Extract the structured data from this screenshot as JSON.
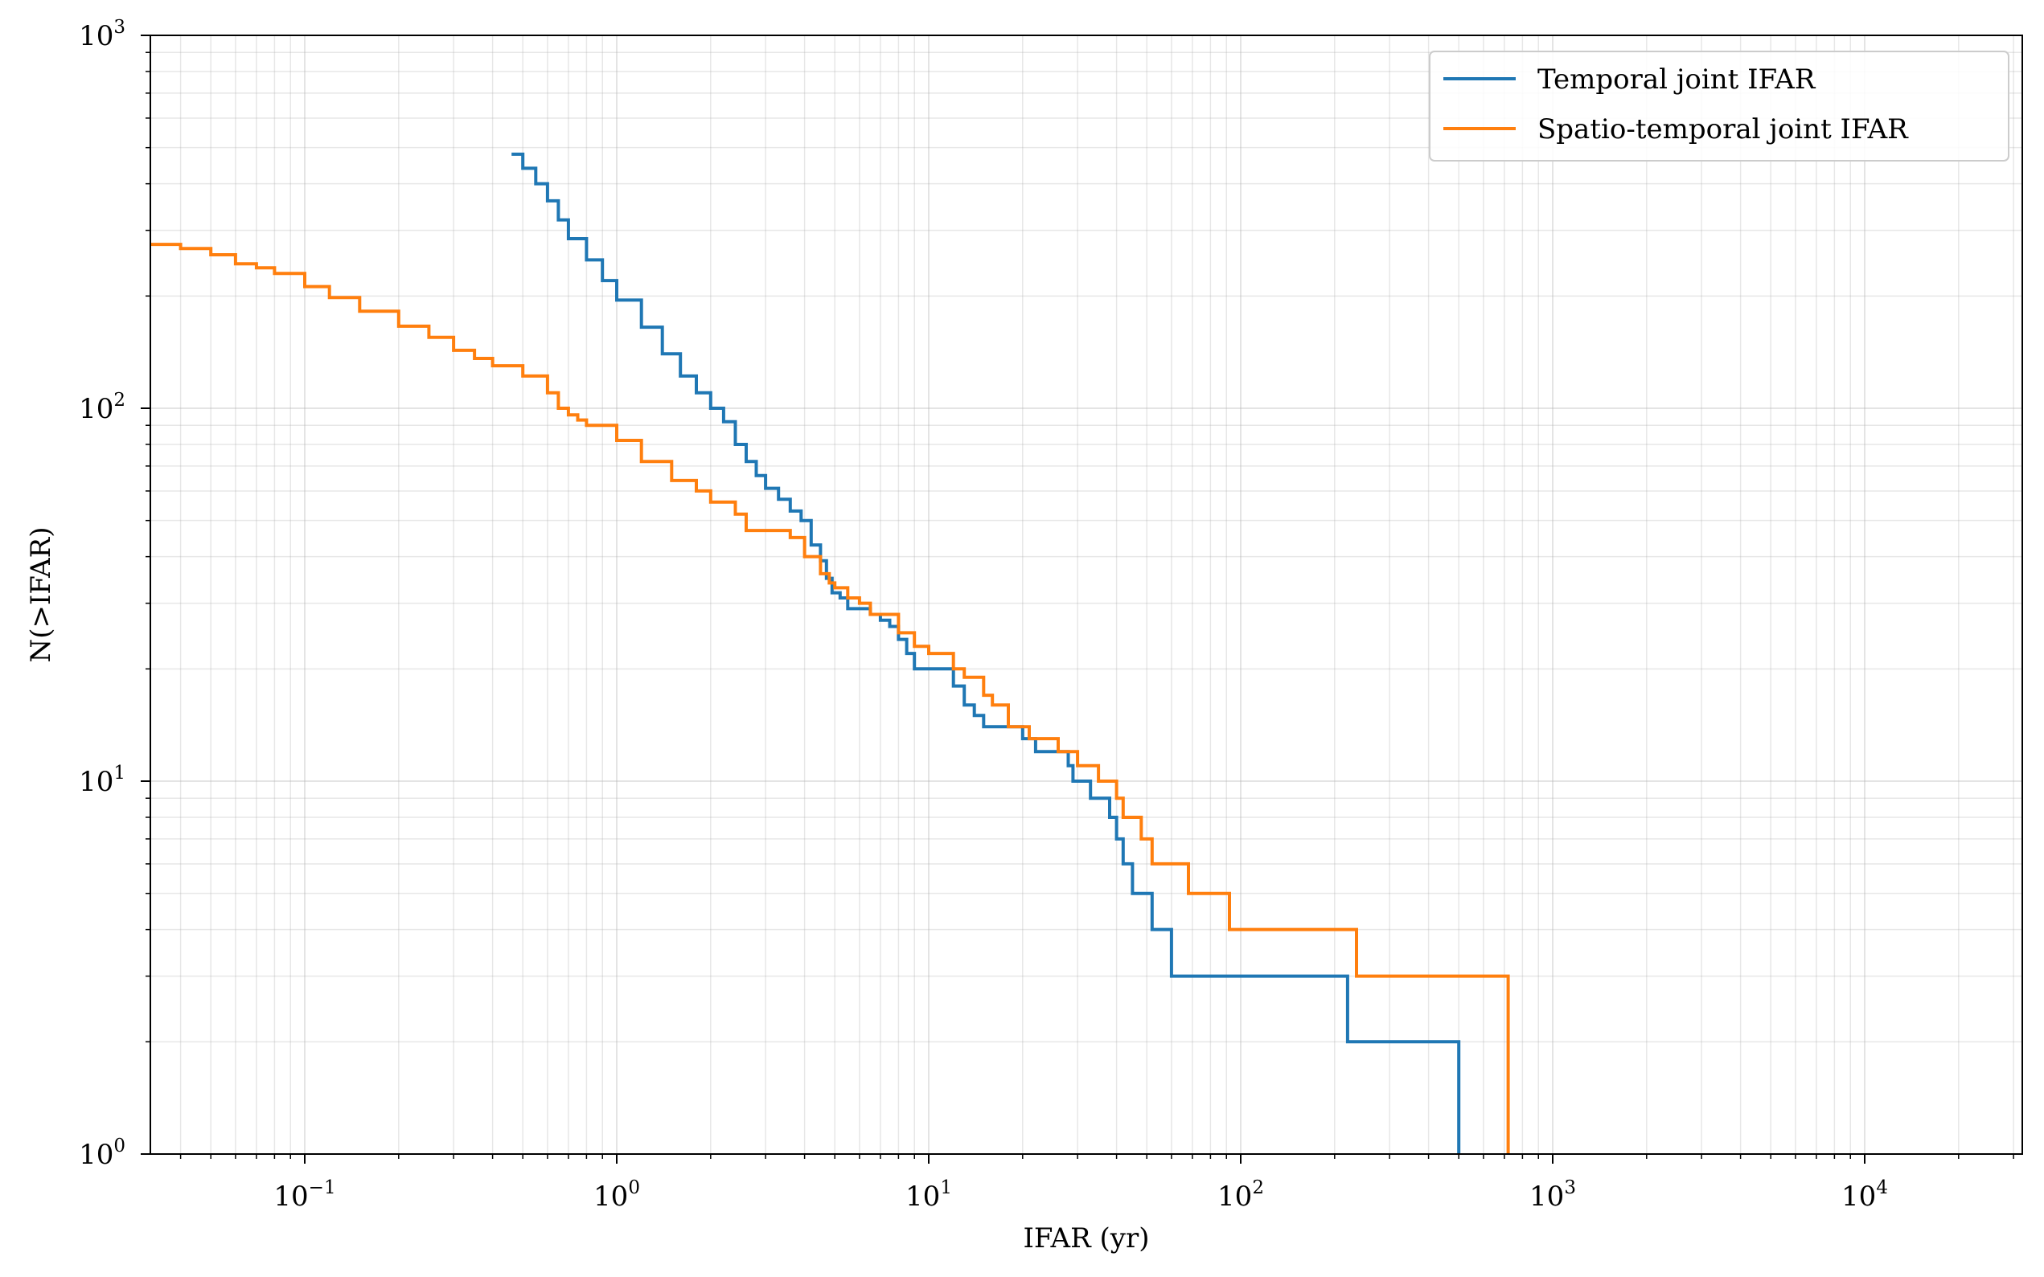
{
  "chart_data": {
    "type": "line",
    "title": "",
    "xlabel": "IFAR (yr)",
    "ylabel": "N(>IFAR)",
    "xscale": "log",
    "yscale": "log",
    "xlim": [
      0.032,
      32000
    ],
    "ylim": [
      1,
      1000
    ],
    "grid": true,
    "legend_position": "top-right",
    "x_ticks": [
      {
        "base": "10",
        "exp": "−1"
      },
      {
        "base": "10",
        "exp": "0"
      },
      {
        "base": "10",
        "exp": "1"
      },
      {
        "base": "10",
        "exp": "2"
      },
      {
        "base": "10",
        "exp": "3"
      },
      {
        "base": "10",
        "exp": "4"
      }
    ],
    "y_ticks": [
      {
        "base": "10",
        "exp": "0"
      },
      {
        "base": "10",
        "exp": "1"
      },
      {
        "base": "10",
        "exp": "2"
      },
      {
        "base": "10",
        "exp": "3"
      }
    ],
    "series": [
      {
        "name": "Temporal joint IFAR",
        "color": "#1f77b4",
        "x": [
          0.46,
          0.5,
          0.55,
          0.6,
          0.65,
          0.7,
          0.8,
          0.9,
          1.0,
          1.2,
          1.4,
          1.6,
          1.8,
          2.0,
          2.2,
          2.4,
          2.6,
          2.8,
          3.0,
          3.3,
          3.6,
          3.9,
          4.2,
          4.5,
          4.7,
          4.9,
          5.2,
          5.5,
          6.0,
          6.5,
          7.0,
          7.5,
          8.0,
          8.5,
          9.0,
          11.0,
          12.0,
          13.0,
          14.0,
          15.0,
          20.0,
          22.0,
          26.0,
          28.0,
          29.0,
          33.0,
          37.0,
          38.0,
          40.0,
          42.0,
          45.0,
          52.0,
          60.0,
          90.0,
          220.0,
          230.0,
          500.0
        ],
        "y": [
          480,
          440,
          400,
          360,
          320,
          285,
          250,
          220,
          195,
          165,
          140,
          122,
          110,
          100,
          92,
          80,
          72,
          66,
          61,
          57,
          53,
          50,
          43,
          39,
          35,
          32,
          31,
          29,
          29,
          28,
          27,
          26,
          24,
          22,
          20,
          20,
          18,
          16,
          15,
          14,
          13,
          12,
          12,
          11,
          10,
          9,
          9,
          8,
          7,
          6,
          5,
          4,
          3,
          3,
          2,
          2,
          1
        ]
      },
      {
        "name": "Spatio-temporal joint IFAR",
        "color": "#ff7f0e",
        "x": [
          0.032,
          0.04,
          0.05,
          0.06,
          0.07,
          0.08,
          0.1,
          0.12,
          0.15,
          0.2,
          0.25,
          0.3,
          0.35,
          0.4,
          0.5,
          0.6,
          0.65,
          0.7,
          0.75,
          0.8,
          1.0,
          1.2,
          1.5,
          1.8,
          2.0,
          2.4,
          2.6,
          3.0,
          3.6,
          4.0,
          4.5,
          4.8,
          5.0,
          5.5,
          6.0,
          6.5,
          8.0,
          9.0,
          10.0,
          12.0,
          13.0,
          15.0,
          16.0,
          18.0,
          21.0,
          26.0,
          30.0,
          35.0,
          40.0,
          42.0,
          48.0,
          52.0,
          55.0,
          68.0,
          92.0,
          235.0,
          720.0
        ],
        "y": [
          275,
          268,
          258,
          244,
          238,
          230,
          212,
          198,
          182,
          166,
          155,
          143,
          136,
          130,
          122,
          110,
          100,
          96,
          93,
          90,
          82,
          72,
          64,
          60,
          56,
          52,
          47,
          47,
          45,
          40,
          36,
          34,
          33,
          31,
          30,
          28,
          25,
          23,
          22,
          20,
          19,
          17,
          16,
          14,
          13,
          12,
          11,
          10,
          9,
          8,
          7,
          6,
          6,
          5,
          4,
          3,
          2
        ]
      }
    ]
  }
}
